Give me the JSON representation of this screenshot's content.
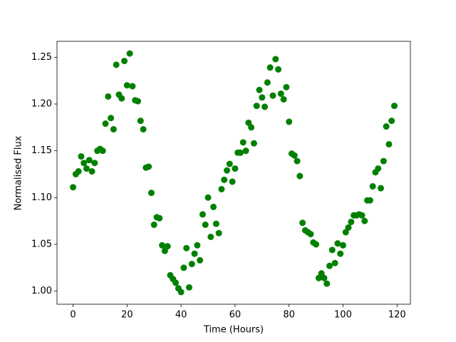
{
  "chart_data": {
    "type": "scatter",
    "xlabel": "Time (Hours)",
    "ylabel": "Normalised Flux",
    "color": "#008000",
    "x": [
      0,
      1,
      2,
      3,
      4,
      5,
      6,
      7,
      8,
      9,
      10,
      11,
      12,
      13,
      14,
      15,
      16,
      17,
      18,
      19,
      20,
      21,
      22,
      23,
      24,
      25,
      26,
      27,
      28,
      29,
      30,
      31,
      32,
      33,
      34,
      35,
      36,
      37,
      38,
      39,
      40,
      41,
      42,
      43,
      44,
      45,
      46,
      47,
      48,
      49,
      50,
      51,
      52,
      53,
      54,
      55,
      56,
      57,
      58,
      59,
      60,
      61,
      62,
      63,
      64,
      65,
      66,
      67,
      68,
      69,
      70,
      71,
      72,
      73,
      74,
      75,
      76,
      77,
      78,
      79,
      80,
      81,
      82,
      83,
      84,
      85,
      86,
      87,
      88,
      89,
      90,
      91,
      92,
      93,
      94,
      95,
      96,
      97,
      98,
      99,
      100,
      101,
      102,
      103,
      104,
      105,
      106,
      107,
      108,
      109,
      110,
      111,
      112,
      113,
      114,
      115,
      116,
      117,
      118,
      119
    ],
    "values": [
      1.111,
      1.125,
      1.128,
      1.144,
      1.137,
      1.131,
      1.14,
      1.128,
      1.137,
      1.15,
      1.152,
      1.15,
      1.179,
      1.208,
      1.185,
      1.173,
      1.242,
      1.21,
      1.206,
      1.246,
      1.22,
      1.254,
      1.219,
      1.204,
      1.203,
      1.182,
      1.173,
      1.132,
      1.133,
      1.105,
      1.071,
      1.079,
      1.078,
      1.049,
      1.043,
      1.048,
      1.017,
      1.013,
      1.009,
      1.003,
      0.999,
      1.025,
      1.046,
      1.004,
      1.029,
      1.04,
      1.049,
      1.033,
      1.082,
      1.071,
      1.1,
      1.058,
      1.09,
      1.072,
      1.062,
      1.109,
      1.119,
      1.129,
      1.136,
      1.117,
      1.131,
      1.148,
      1.148,
      1.159,
      1.15,
      1.18,
      1.175,
      1.158,
      1.198,
      1.215,
      1.207,
      1.197,
      1.223,
      1.239,
      1.209,
      1.248,
      1.237,
      1.211,
      1.205,
      1.218,
      1.181,
      1.147,
      1.145,
      1.139,
      1.123,
      1.073,
      1.065,
      1.063,
      1.061,
      1.052,
      1.05,
      1.014,
      1.019,
      1.014,
      1.008,
      1.027,
      1.044,
      1.03,
      1.051,
      1.04,
      1.049,
      1.063,
      1.068,
      1.074,
      1.081,
      1.081,
      1.082,
      1.081,
      1.075,
      1.097,
      1.097,
      1.112,
      1.127,
      1.131,
      1.11,
      1.139,
      1.176,
      1.157,
      1.182,
      1.198
    ],
    "xlim": [
      -5.95,
      124.95
    ],
    "ylim": [
      0.986,
      1.267
    ],
    "xticks": [
      0,
      20,
      40,
      60,
      80,
      100,
      120
    ],
    "yticks": [
      {
        "value": 1,
        "label": "1.00"
      },
      1.05,
      {
        "value": 1.1,
        "label": "1.10"
      },
      1.15,
      {
        "value": 1.2,
        "label": "1.20"
      },
      1.25
    ]
  }
}
